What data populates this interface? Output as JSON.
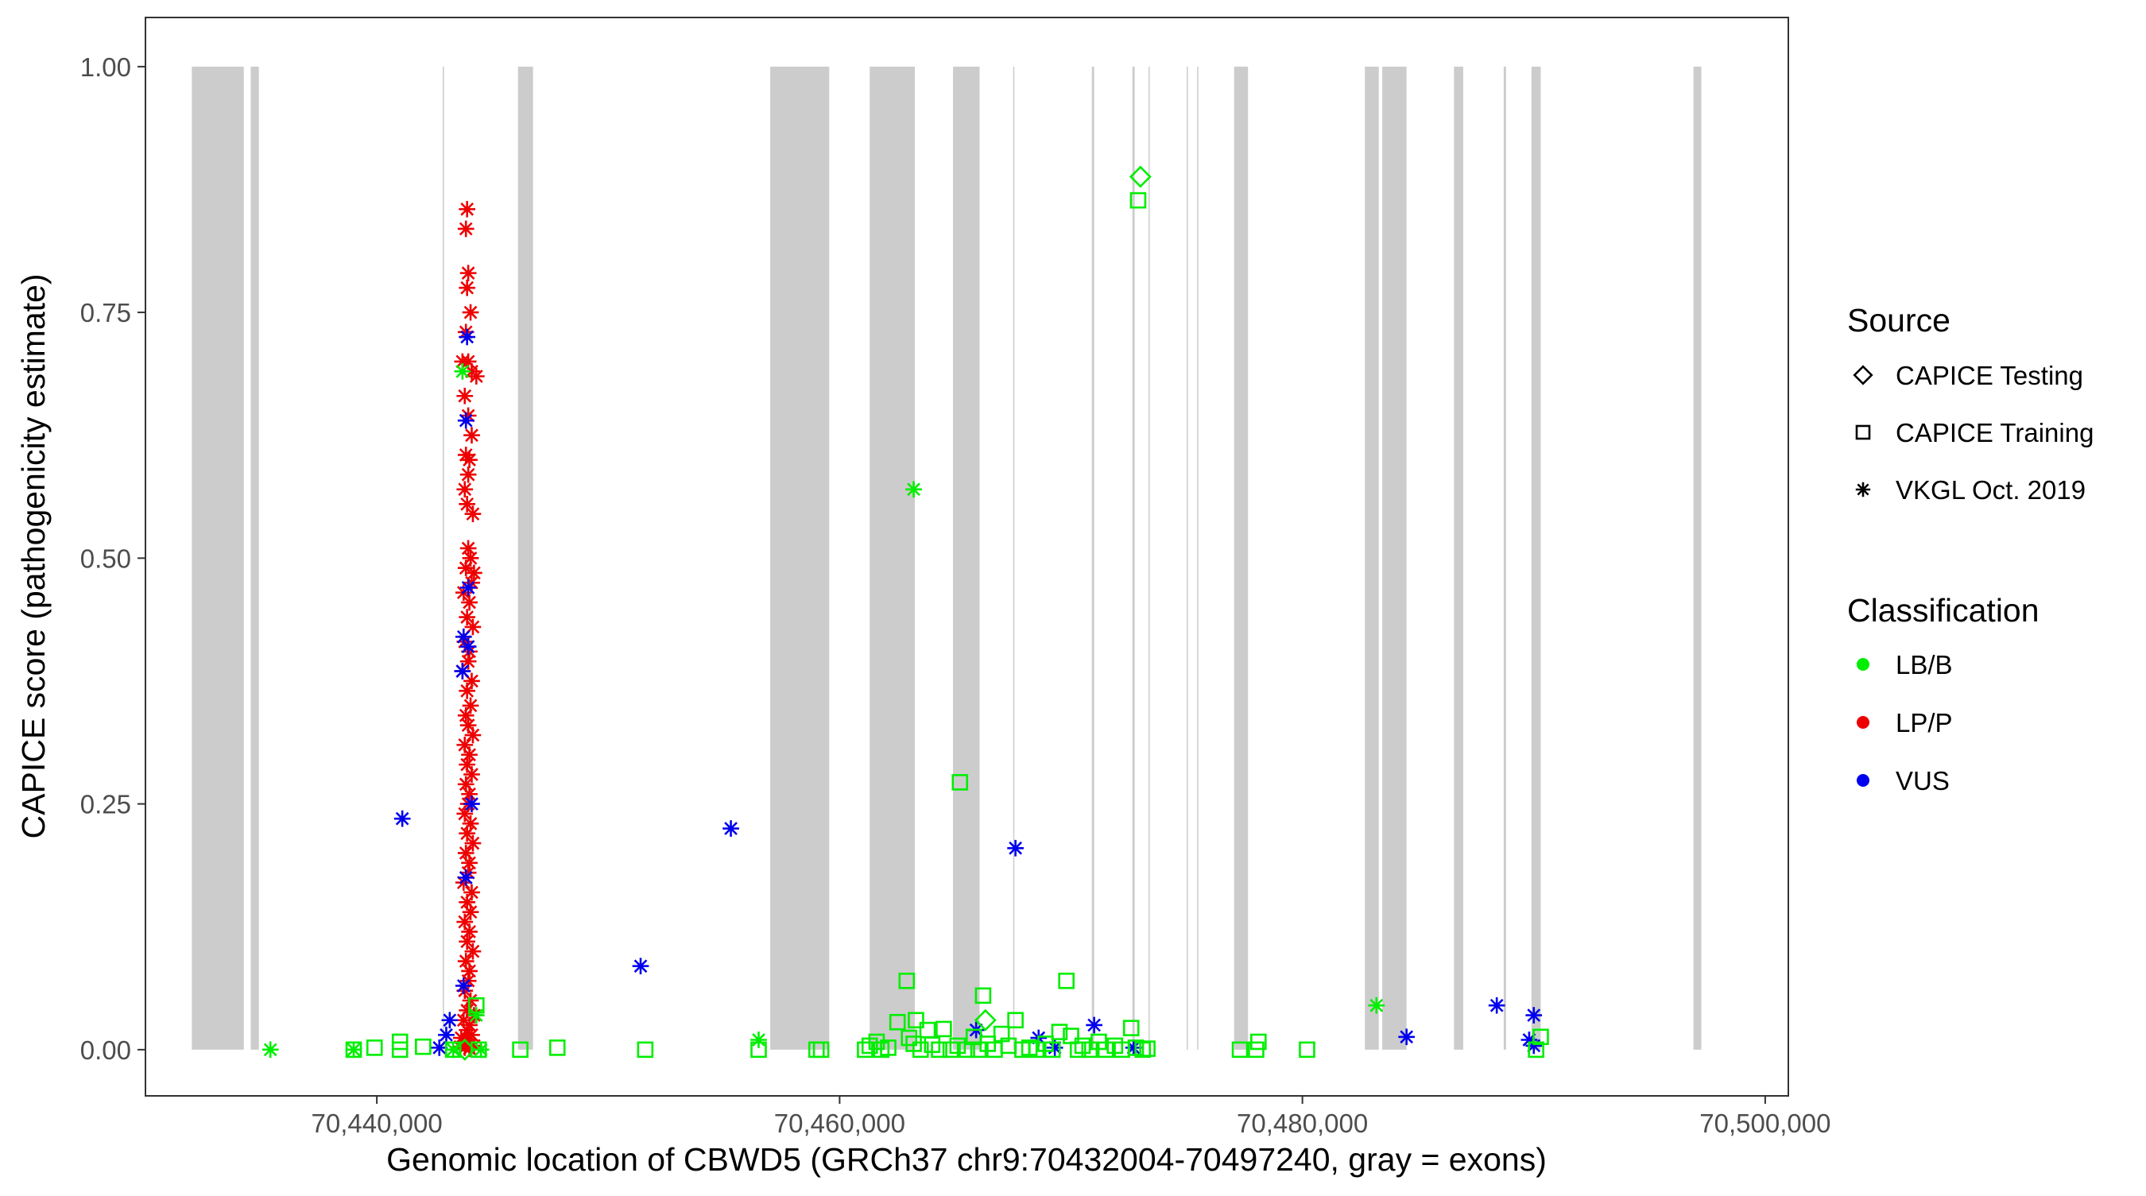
{
  "chart_data": {
    "type": "scatter",
    "xlabel": "Genomic location of CBWD5 (GRCh37 chr9:70432004-70497240, gray = exons)",
    "ylabel": "CAPICE score (pathogenicity estimate)",
    "xlim": [
      70430000,
      70501000
    ],
    "ylim": [
      -0.047,
      1.05
    ],
    "x_ticks": [
      70440000,
      70460000,
      70480000,
      70500000
    ],
    "x_tick_labels": [
      "70,440,000",
      "70,460,000",
      "70,480,000",
      "70,500,000"
    ],
    "y_ticks": [
      0,
      0.25,
      0.5,
      0.75,
      1
    ],
    "y_tick_labels": [
      "0.00",
      "0.25",
      "0.50",
      "0.75",
      "1.00"
    ],
    "grid": false,
    "legend_position": "right",
    "exons": [
      [
        70432004,
        70434250
      ],
      [
        70434550,
        70434900
      ],
      [
        70442850,
        70442870
      ],
      [
        70446100,
        70446750
      ],
      [
        70457000,
        70459550
      ],
      [
        70461300,
        70463250
      ],
      [
        70464900,
        70466050
      ],
      [
        70467500,
        70467550
      ],
      [
        70470900,
        70471000
      ],
      [
        70472650,
        70472750
      ],
      [
        70473350,
        70473400
      ],
      [
        70475000,
        70475050
      ],
      [
        70475450,
        70475500
      ],
      [
        70477050,
        70477650
      ],
      [
        70482700,
        70483300
      ],
      [
        70483450,
        70484500
      ],
      [
        70486550,
        70486950
      ],
      [
        70488700,
        70488800
      ],
      [
        70489900,
        70490300
      ],
      [
        70496900,
        70497240
      ]
    ],
    "legend": {
      "source_title": "Source",
      "source_items": [
        {
          "label": "CAPICE Testing",
          "shape": "diamond"
        },
        {
          "label": "CAPICE Training",
          "shape": "square"
        },
        {
          "label": "VKGL Oct. 2019",
          "shape": "asterisk"
        }
      ],
      "class_title": "Classification",
      "class_items": [
        {
          "label": "LB/B",
          "color": "#00ee00"
        },
        {
          "label": "LP/P",
          "color": "#ee0000"
        },
        {
          "label": "VUS",
          "color": "#0000ee"
        }
      ]
    },
    "colors": {
      "LB/B": "#00ee00",
      "LP/P": "#ee0000",
      "VUS": "#0000ee",
      "exon": "#cccccc"
    },
    "series": [
      {
        "name": "LP/P",
        "source": "VKGL Oct. 2019",
        "points": [
          [
            70443900,
            0.855
          ],
          [
            70443850,
            0.835
          ],
          [
            70443950,
            0.79
          ],
          [
            70443900,
            0.775
          ],
          [
            70444050,
            0.75
          ],
          [
            70443850,
            0.73
          ],
          [
            70443700,
            0.7
          ],
          [
            70444100,
            0.69
          ],
          [
            70443950,
            0.7
          ],
          [
            70444300,
            0.685
          ],
          [
            70443800,
            0.665
          ],
          [
            70443950,
            0.645
          ],
          [
            70444100,
            0.625
          ],
          [
            70443850,
            0.605
          ],
          [
            70444000,
            0.6
          ],
          [
            70443950,
            0.585
          ],
          [
            70443800,
            0.57
          ],
          [
            70443900,
            0.555
          ],
          [
            70444150,
            0.545
          ],
          [
            70443950,
            0.51
          ],
          [
            70444050,
            0.5
          ],
          [
            70443850,
            0.49
          ],
          [
            70444200,
            0.485
          ],
          [
            70444100,
            0.475
          ],
          [
            70443750,
            0.465
          ],
          [
            70444000,
            0.455
          ],
          [
            70443900,
            0.44
          ],
          [
            70444150,
            0.43
          ],
          [
            70443800,
            0.415
          ],
          [
            70444000,
            0.405
          ],
          [
            70443950,
            0.395
          ],
          [
            70443700,
            0.385
          ],
          [
            70444100,
            0.375
          ],
          [
            70443900,
            0.365
          ],
          [
            70444050,
            0.35
          ],
          [
            70443850,
            0.34
          ],
          [
            70443950,
            0.33
          ],
          [
            70444150,
            0.32
          ],
          [
            70443800,
            0.31
          ],
          [
            70444000,
            0.3
          ],
          [
            70443900,
            0.29
          ],
          [
            70444100,
            0.28
          ],
          [
            70443850,
            0.27
          ],
          [
            70444000,
            0.26
          ],
          [
            70443950,
            0.25
          ],
          [
            70443800,
            0.24
          ],
          [
            70444050,
            0.23
          ],
          [
            70443900,
            0.22
          ],
          [
            70444150,
            0.21
          ],
          [
            70443850,
            0.2
          ],
          [
            70444000,
            0.19
          ],
          [
            70443950,
            0.18
          ],
          [
            70443750,
            0.17
          ],
          [
            70444100,
            0.16
          ],
          [
            70443900,
            0.15
          ],
          [
            70444050,
            0.14
          ],
          [
            70443800,
            0.13
          ],
          [
            70444000,
            0.12
          ],
          [
            70443900,
            0.11
          ],
          [
            70444150,
            0.1
          ],
          [
            70443850,
            0.09
          ],
          [
            70444000,
            0.08
          ],
          [
            70443950,
            0.07
          ],
          [
            70443800,
            0.06
          ],
          [
            70444050,
            0.05
          ],
          [
            70443900,
            0.04
          ],
          [
            70444200,
            0.035
          ],
          [
            70443750,
            0.03
          ],
          [
            70444000,
            0.025
          ],
          [
            70443900,
            0.02
          ],
          [
            70444100,
            0.015
          ],
          [
            70443650,
            0.012
          ],
          [
            70443950,
            0.01
          ],
          [
            70443850,
            0.006
          ],
          [
            70444200,
            0.004
          ],
          [
            70443600,
            0.003
          ],
          [
            70443800,
            0.002
          ],
          [
            70444000,
            0.001
          ]
        ]
      },
      {
        "name": "VUS",
        "source": "VKGL Oct. 2019",
        "points": [
          [
            70443900,
            0.725
          ],
          [
            70443850,
            0.64
          ],
          [
            70443950,
            0.47
          ],
          [
            70443750,
            0.42
          ],
          [
            70443950,
            0.41
          ],
          [
            70443700,
            0.385
          ],
          [
            70444100,
            0.25
          ],
          [
            70441100,
            0.235
          ],
          [
            70443850,
            0.175
          ],
          [
            70443750,
            0.065
          ],
          [
            70443150,
            0.03
          ],
          [
            70443000,
            0.015
          ],
          [
            70442700,
            0.002
          ],
          [
            70451400,
            0.085
          ],
          [
            70455300,
            0.225
          ],
          [
            70467600,
            0.205
          ],
          [
            70465900,
            0.02
          ],
          [
            70468600,
            0.012
          ],
          [
            70471000,
            0.025
          ],
          [
            70469300,
            0.002
          ],
          [
            70472700,
            0.002
          ],
          [
            70484500,
            0.013
          ],
          [
            70488400,
            0.045
          ],
          [
            70489800,
            0.01
          ],
          [
            70490000,
            0.035
          ],
          [
            70490000,
            0.004
          ]
        ]
      },
      {
        "name": "LB/B",
        "source": "VKGL Oct. 2019",
        "points": [
          [
            70435400,
            0.0
          ],
          [
            70439000,
            0.0
          ],
          [
            70443700,
            0.69
          ],
          [
            70463200,
            0.57
          ],
          [
            70456500,
            0.01
          ],
          [
            70483200,
            0.045
          ],
          [
            70444300,
            0.035
          ],
          [
            70444500,
            0.0
          ],
          [
            70443300,
            0.0
          ]
        ]
      },
      {
        "name": "LB/B",
        "source": "CAPICE Training",
        "points": [
          [
            70439000,
            0.0
          ],
          [
            70439900,
            0.002
          ],
          [
            70441000,
            0.0
          ],
          [
            70441000,
            0.008
          ],
          [
            70442000,
            0.003
          ],
          [
            70443300,
            0.0
          ],
          [
            70444400,
            0.0
          ],
          [
            70444300,
            0.045
          ],
          [
            70446200,
            0.0
          ],
          [
            70447800,
            0.002
          ],
          [
            70451600,
            0.0
          ],
          [
            70456500,
            0.0
          ],
          [
            70459000,
            0.0
          ],
          [
            70459200,
            0.0
          ],
          [
            70461100,
            0.0
          ],
          [
            70461300,
            0.004
          ],
          [
            70461600,
            0.008
          ],
          [
            70461800,
            0.0
          ],
          [
            70462100,
            0.002
          ],
          [
            70462500,
            0.028
          ],
          [
            70462900,
            0.07
          ],
          [
            70463000,
            0.012
          ],
          [
            70463200,
            0.006
          ],
          [
            70463300,
            0.03
          ],
          [
            70463500,
            0.0
          ],
          [
            70463800,
            0.02
          ],
          [
            70464000,
            0.005
          ],
          [
            70464300,
            0.0
          ],
          [
            70464500,
            0.021
          ],
          [
            70464800,
            0.0
          ],
          [
            70465100,
            0.004
          ],
          [
            70465200,
            0.272
          ],
          [
            70465500,
            0.0
          ],
          [
            70465800,
            0.013
          ],
          [
            70466000,
            0.0
          ],
          [
            70466200,
            0.055
          ],
          [
            70466400,
            0.006
          ],
          [
            70466700,
            0.0
          ],
          [
            70467000,
            0.016
          ],
          [
            70467300,
            0.004
          ],
          [
            70467600,
            0.03
          ],
          [
            70467900,
            0.0
          ],
          [
            70468200,
            0.002
          ],
          [
            70468500,
            0.0
          ],
          [
            70468900,
            0.006
          ],
          [
            70469200,
            0.0
          ],
          [
            70469500,
            0.018
          ],
          [
            70469800,
            0.07
          ],
          [
            70470000,
            0.014
          ],
          [
            70470300,
            0.0
          ],
          [
            70470500,
            0.004
          ],
          [
            70470800,
            0.0
          ],
          [
            70471200,
            0.008
          ],
          [
            70471500,
            0.0
          ],
          [
            70471900,
            0.004
          ],
          [
            70472200,
            0.0
          ],
          [
            70472600,
            0.022
          ],
          [
            70472800,
            0.002
          ],
          [
            70472900,
            0.864
          ],
          [
            70473100,
            0.0
          ],
          [
            70473300,
            0.001
          ],
          [
            70477300,
            0.0
          ],
          [
            70478000,
            0.0
          ],
          [
            70478100,
            0.008
          ],
          [
            70480200,
            0.0
          ],
          [
            70490100,
            0.0
          ],
          [
            70490300,
            0.013
          ]
        ]
      },
      {
        "name": "LB/B",
        "source": "CAPICE Testing",
        "points": [
          [
            70473000,
            0.888
          ],
          [
            70466300,
            0.03
          ],
          [
            70443800,
            0.0
          ]
        ]
      }
    ]
  }
}
